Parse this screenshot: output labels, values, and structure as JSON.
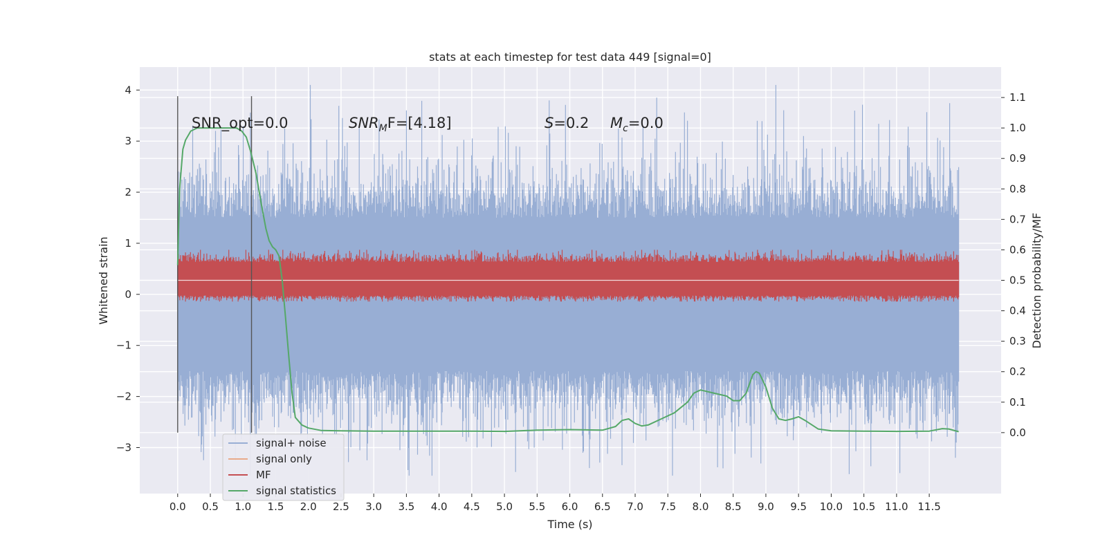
{
  "chart_data": {
    "type": "line",
    "title": "stats at each timestep for test data 449 [signal=0]",
    "xlabel": "Time (s)",
    "ylabel": "Whitened strain",
    "y2label": "Detection probability/MF",
    "xlim": [
      -0.58,
      12.6
    ],
    "ylim": [
      -3.9,
      4.45
    ],
    "y2lim": [
      -0.2,
      1.2
    ],
    "x_ticks": [
      "0.0",
      "0.5",
      "1.0",
      "1.5",
      "2.0",
      "2.5",
      "3.0",
      "3.5",
      "4.0",
      "4.5",
      "5.0",
      "5.5",
      "6.0",
      "6.5",
      "7.0",
      "7.5",
      "8.0",
      "8.5",
      "9.0",
      "9.5",
      "10.0",
      "10.5",
      "11.0",
      "11.5"
    ],
    "y_ticks": [
      "4",
      "3",
      "2",
      "1",
      "0",
      "−1",
      "−2",
      "−3"
    ],
    "y2_ticks": [
      "1.1",
      "1.0",
      "0.9",
      "0.8",
      "0.7",
      "0.6",
      "0.5",
      "0.4",
      "0.3",
      "0.2",
      "0.1",
      "0.0"
    ],
    "grid": true,
    "legend_position": "lower-left",
    "annotations": {
      "snr_opt": "SNR_opt=0.0",
      "snr_mf_sym": "SNR",
      "snr_mf_sub": "M",
      "snr_mf_rest": "F=[4.18]",
      "s_sym": "S",
      "s_rest": "=0.2",
      "mc_sym": "M",
      "mc_sub": "c",
      "mc_rest": "=0.0"
    },
    "window_lines_x": [
      0.0,
      1.13
    ],
    "series": [
      {
        "name": "signal+ noise",
        "color": "#98aed4",
        "axis": "left",
        "envelope": {
          "x": [
            0.0,
            11.95
          ],
          "core_band": [
            -1.5,
            1.5
          ],
          "peak_max": 4.1,
          "trough_min": -3.55
        }
      },
      {
        "name": "signal only",
        "color": "#e8aa8a",
        "axis": "left",
        "note": ""
      },
      {
        "name": "MF",
        "color": "#c44e52",
        "axis": "right",
        "envelope": {
          "x": [
            0.0,
            11.95
          ],
          "baseline": 0.5,
          "band": [
            0.45,
            0.56
          ],
          "peak_max": 0.6
        }
      },
      {
        "name": "signal statistics",
        "color": "#55a868",
        "axis": "right",
        "x": [
          0.0,
          0.03,
          0.08,
          0.12,
          0.2,
          0.3,
          0.5,
          0.7,
          0.9,
          0.98,
          1.05,
          1.12,
          1.2,
          1.28,
          1.35,
          1.4,
          1.45,
          1.5,
          1.55,
          1.6,
          1.65,
          1.7,
          1.75,
          1.8,
          1.9,
          2.0,
          2.2,
          2.5,
          3.0,
          3.5,
          4.0,
          4.5,
          5.0,
          5.5,
          6.0,
          6.5,
          6.7,
          6.8,
          6.9,
          7.0,
          7.1,
          7.2,
          7.4,
          7.6,
          7.8,
          7.9,
          8.0,
          8.2,
          8.4,
          8.5,
          8.6,
          8.7,
          8.8,
          8.85,
          8.9,
          9.0,
          9.1,
          9.2,
          9.3,
          9.4,
          9.5,
          9.6,
          9.8,
          10.0,
          10.5,
          11.0,
          11.5,
          11.7,
          11.8,
          11.95
        ],
        "y": [
          0.55,
          0.8,
          0.93,
          0.96,
          0.99,
          1.0,
          1.0,
          1.0,
          1.0,
          0.99,
          0.97,
          0.92,
          0.85,
          0.75,
          0.67,
          0.63,
          0.61,
          0.6,
          0.58,
          0.5,
          0.38,
          0.25,
          0.13,
          0.05,
          0.025,
          0.015,
          0.007,
          0.006,
          0.005,
          0.005,
          0.005,
          0.005,
          0.004,
          0.008,
          0.01,
          0.008,
          0.02,
          0.04,
          0.045,
          0.03,
          0.022,
          0.025,
          0.045,
          0.065,
          0.1,
          0.13,
          0.14,
          0.13,
          0.12,
          0.105,
          0.105,
          0.13,
          0.19,
          0.2,
          0.195,
          0.15,
          0.08,
          0.045,
          0.04,
          0.045,
          0.052,
          0.04,
          0.012,
          0.006,
          0.005,
          0.004,
          0.005,
          0.013,
          0.012,
          0.003
        ]
      }
    ]
  }
}
